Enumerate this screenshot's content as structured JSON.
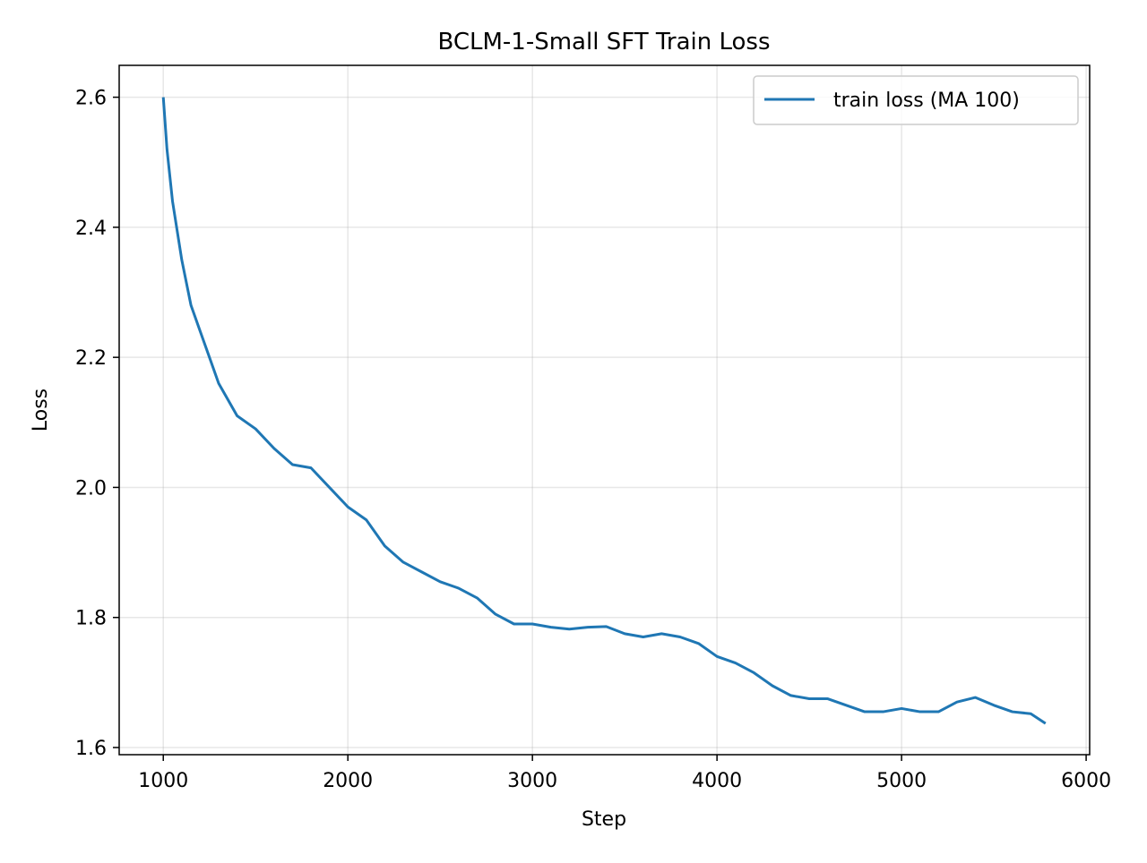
{
  "chart_data": {
    "type": "line",
    "title": "BCLM-1-Small SFT Train Loss",
    "xlabel": "Step",
    "ylabel": "Loss",
    "x": [
      1000,
      1020,
      1050,
      1100,
      1150,
      1200,
      1250,
      1300,
      1400,
      1500,
      1600,
      1700,
      1800,
      1900,
      2000,
      2100,
      2200,
      2300,
      2400,
      2500,
      2600,
      2700,
      2800,
      2900,
      3000,
      3100,
      3200,
      3300,
      3400,
      3500,
      3600,
      3700,
      3800,
      3900,
      4000,
      4100,
      4200,
      4300,
      4400,
      4500,
      4600,
      4700,
      4800,
      4900,
      5000,
      5100,
      5200,
      5300,
      5400,
      5500,
      5600,
      5700,
      5780
    ],
    "series": [
      {
        "name": "train loss (MA 100)",
        "color": "#1f77b4",
        "values": [
          2.6,
          2.52,
          2.44,
          2.35,
          2.28,
          2.24,
          2.2,
          2.16,
          2.11,
          2.09,
          2.06,
          2.035,
          2.03,
          2.0,
          1.97,
          1.95,
          1.91,
          1.885,
          1.87,
          1.855,
          1.845,
          1.83,
          1.805,
          1.79,
          1.79,
          1.785,
          1.782,
          1.785,
          1.786,
          1.775,
          1.77,
          1.775,
          1.77,
          1.76,
          1.74,
          1.73,
          1.715,
          1.695,
          1.68,
          1.675,
          1.675,
          1.665,
          1.655,
          1.655,
          1.66,
          1.655,
          1.655,
          1.67,
          1.677,
          1.665,
          1.655,
          1.652,
          1.637
        ]
      }
    ],
    "xlim": [
      761,
      6019
    ],
    "xticks": [
      1000,
      2000,
      3000,
      4000,
      5000,
      6000
    ],
    "ylim": [
      1.589,
      2.649
    ],
    "yticks": [
      1.6,
      1.8,
      {
        "value": 2,
        "label": "2.0"
      },
      2.2,
      2.4,
      2.6
    ],
    "grid": true,
    "legend": "upper right"
  }
}
